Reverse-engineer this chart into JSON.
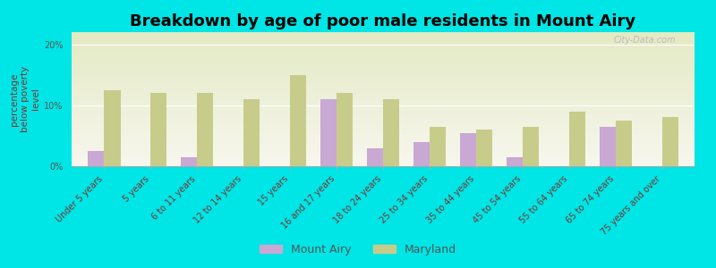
{
  "title": "Breakdown by age of poor male residents in Mount Airy",
  "ylabel": "percentage\nbelow poverty\nlevel",
  "categories": [
    "Under 5 years",
    "5 years",
    "6 to 11 years",
    "12 to 14 years",
    "15 years",
    "16 and 17 years",
    "18 to 24 years",
    "25 to 34 years",
    "35 to 44 years",
    "45 to 54 years",
    "55 to 64 years",
    "65 to 74 years",
    "75 years and over"
  ],
  "mount_airy": [
    2.5,
    0,
    1.5,
    0,
    0,
    11.0,
    3.0,
    4.0,
    5.5,
    1.5,
    0,
    6.5,
    0
  ],
  "maryland": [
    12.5,
    12.0,
    12.0,
    11.0,
    15.0,
    12.0,
    11.0,
    6.5,
    6.0,
    6.5,
    9.0,
    7.5,
    8.0
  ],
  "mount_airy_color": "#c9a8d4",
  "maryland_color": "#c8cc8a",
  "background_color": "#00e5e5",
  "plot_bg_color_top": "#f7f7ee",
  "plot_bg_color_bottom": "#e4eac4",
  "ylim": [
    0,
    22
  ],
  "yticks": [
    0,
    10,
    20
  ],
  "ytick_labels": [
    "0%",
    "10%",
    "20%"
  ],
  "bar_width": 0.35,
  "title_fontsize": 13,
  "axis_label_fontsize": 7.5,
  "tick_fontsize": 7,
  "legend_fontsize": 9,
  "watermark": "City-Data.com"
}
